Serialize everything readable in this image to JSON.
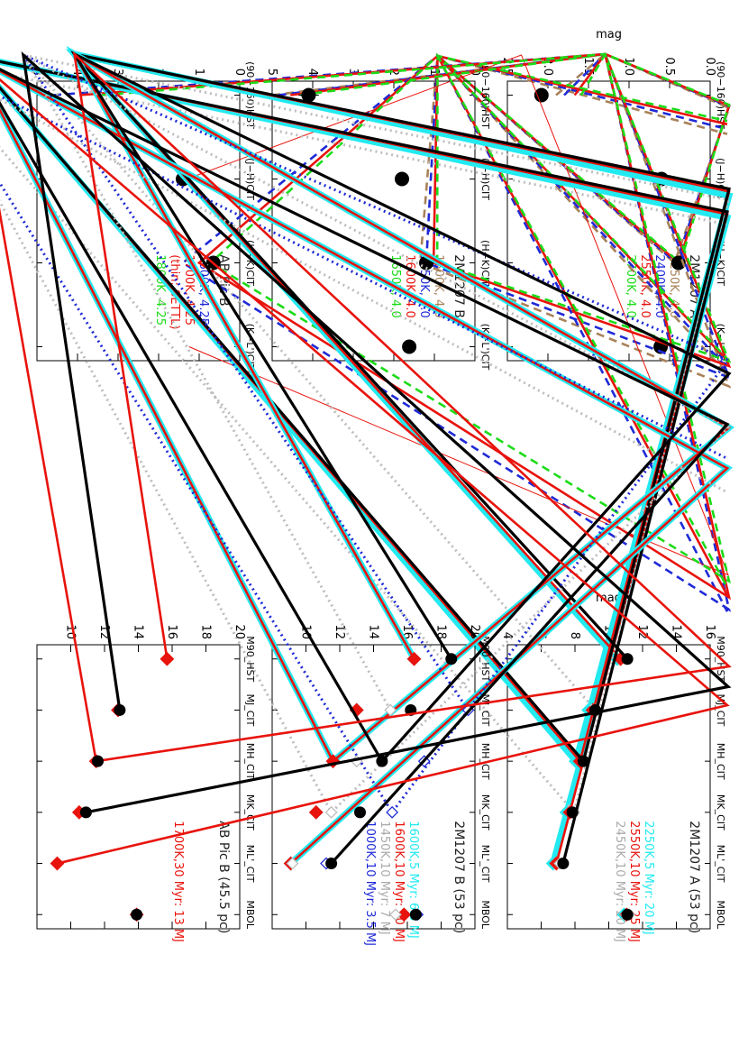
{
  "figure": {
    "orientation": "rotated-90-clockwise"
  },
  "chart_data": [
    {
      "id": "colors_A",
      "type": "line",
      "title": "2M1207 A",
      "ylabel": "mag",
      "ylim": [
        0,
        2.5
      ],
      "yticks": [
        0,
        0.5,
        1,
        1.5,
        2,
        2.5
      ],
      "ytick_labels": [
        "0.0",
        "0.5",
        "1.0",
        "1.5",
        "2.0",
        "2.5"
      ],
      "categories": [
        "(90−160)HST",
        "(J−H)CIT",
        "(H−K)CIT",
        "(K−L')CIT"
      ],
      "series": [
        {
          "name": "2250K, 4.0",
          "color": "#a8825a",
          "dash": "dashed",
          "values": [
            1.9,
            0.42,
            0.44,
            0.74
          ]
        },
        {
          "name": "2400K, 4.0",
          "color": "#1f2ad6",
          "dash": "dashed",
          "values": [
            1.8,
            0.4,
            0.42,
            0.68
          ]
        },
        {
          "name": "2550K, 4.0",
          "color": "#e8130c",
          "dash": "solid",
          "values": [
            1.67,
            0.39,
            0.39,
            0.62
          ]
        },
        {
          "name": "2700K, 4.0",
          "color": "#1bdc18",
          "dash": "dashed",
          "values": [
            1.59,
            0.38,
            0.37,
            0.58
          ]
        }
      ],
      "observed": {
        "values": [
          2.08,
          0.6,
          0.39,
          0.61
        ],
        "errors": [
          0.0,
          0.0,
          0.0,
          0.06
        ]
      }
    },
    {
      "id": "colors_B",
      "type": "line",
      "title": "2M1207 B",
      "ylim": [
        0,
        5
      ],
      "yticks": [
        0,
        1,
        2,
        3,
        4,
        5
      ],
      "ytick_labels": [
        "0",
        "1",
        "2",
        "3",
        "4",
        "5"
      ],
      "categories": [
        "(90−160)HST",
        "(J−H)CIT",
        "(H−K)CIT",
        "(K−L')CIT"
      ],
      "series": [
        {
          "name": "1500K, 4.0",
          "color": "#a8825a",
          "dash": "dashed",
          "values": [
            5.0,
            1.9,
            1.35,
            1.6
          ]
        },
        {
          "name": "1550K, 4.0",
          "color": "#1f2ad6",
          "dash": "dashed",
          "values": [
            4.85,
            1.68,
            1.2,
            1.45
          ]
        },
        {
          "name": "1600K, 4.0",
          "color": "#e8130c",
          "dash": "solid",
          "values": [
            4.55,
            1.4,
            1.02,
            1.26
          ]
        },
        {
          "name": "1650K, 4.0",
          "color": "#1bdc18",
          "dash": "dashed",
          "values": [
            4.3,
            1.28,
            0.93,
            1.22
          ]
        }
      ],
      "observed": {
        "values": [
          4.1,
          1.8,
          1.2,
          1.62
        ],
        "errors": [
          0.25,
          0.1,
          0.1,
          0.12
        ]
      }
    },
    {
      "id": "colors_ABPic",
      "type": "line",
      "title": "AB Pic B",
      "ylim": [
        0,
        5
      ],
      "yticks": [
        0,
        1,
        2,
        3,
        4,
        5
      ],
      "ytick_labels": [
        "0",
        "1",
        "2",
        "3",
        "4",
        "5"
      ],
      "categories": [
        "(90−160)HST",
        "(J−H)CIT",
        "(H−K)CIT",
        "(K−L')CIT"
      ],
      "series": [
        {
          "name": "1600K, 4.25",
          "color": "#1f2ad6",
          "dash": "dashed",
          "values": [
            4.6,
            1.6,
            1.4,
            1.65
          ]
        },
        {
          "name": "1700K, 4.25",
          "color": "#e8130c",
          "dash": "solid",
          "values": [
            3.95,
            1.3,
            1.0,
            1.25
          ]
        },
        {
          "name": "(thin: SETTL)",
          "color": "#e8130c",
          "dash": "thin",
          "values": [
            null,
            1.3,
            0.75,
            1.25
          ]
        },
        {
          "name": "1800K, 4.25",
          "color": "#1bdc18",
          "dash": "dashed",
          "values": [
            3.4,
            0.9,
            0.72,
            1.05
          ]
        }
      ],
      "observed": {
        "values": [
          null,
          1.4,
          0.65,
          null
        ],
        "errors": [
          null,
          0.08,
          0.08,
          null
        ]
      }
    },
    {
      "id": "mags_A",
      "type": "line",
      "title": "2M1207 A (53 pc)",
      "ylabel": "mag",
      "ylim": [
        16,
        4
      ],
      "yticks": [
        4,
        6,
        8,
        10,
        12,
        14,
        16
      ],
      "ytick_labels": [
        "4",
        "6",
        "8",
        "10",
        "12",
        "14",
        "16"
      ],
      "categories": [
        "M90_HST",
        "MJ_CIT",
        "MH_CIT",
        "MK_CIT",
        "ML'_CIT",
        "MBOL"
      ],
      "series": [
        {
          "name": "2250K,5 Myr: 20 MJ",
          "color": "#22eaf0",
          "style": "thick",
          "marker": "diamond",
          "values": [
            10.5,
            8.8,
            8.05,
            7.5,
            6.7,
            10.9
          ],
          "connect_to": 5
        },
        {
          "name": "2550K,10 Myr: 25 MJ",
          "color": "#e8130c",
          "style": "solid",
          "marker": "diamond",
          "values": [
            10.7,
            9.05,
            8.3,
            7.7,
            6.9,
            11.05
          ],
          "connect_to": 5
        },
        {
          "name": "2450K,10 Myr: 20 MJ",
          "color": "#bdbdbd",
          "style": "dotted",
          "marker": "open-diamond",
          "values": [
            null,
            9.2,
            8.55,
            7.95,
            7.1,
            11.2
          ],
          "connect_to": 5
        }
      ],
      "observed": {
        "values": [
          11.1,
          9.2,
          8.5,
          7.85,
          7.3,
          11.1
        ]
      }
    },
    {
      "id": "mags_B",
      "type": "line",
      "title": "2M1207 B (53 pc)",
      "ylim": [
        20,
        8
      ],
      "yticks": [
        10,
        12,
        14,
        16,
        18,
        20
      ],
      "ytick_labels": [
        "10",
        "12",
        "14",
        "16",
        "18",
        "20"
      ],
      "categories": [
        "M90_HST",
        "MJ_CIT",
        "MH_CIT",
        "MK_CIT",
        "ML'_CIT",
        "MBOL"
      ],
      "series": [
        {
          "name": "1600K,5 Myr: 6.5 MJ",
          "color": "#22eaf0",
          "style": "thick",
          "marker": "diamond",
          "values": [
            16.4,
            13.0,
            11.6,
            10.6,
            9.1,
            15.8
          ],
          "connect_to": 5
        },
        {
          "name": "1600K,10 Myr: 10 MJ",
          "color": "#e8130c",
          "style": "solid",
          "marker": "diamond",
          "values": [
            16.4,
            13.0,
            11.6,
            10.6,
            9.1,
            15.8
          ],
          "connect_to": 5
        },
        {
          "name": "1450K,10 Myr: 7 MJ",
          "color": "#bdbdbd",
          "style": "dotted",
          "marker": "open-diamond",
          "values": [
            null,
            15.0,
            13.0,
            11.5,
            9.2,
            15.3
          ],
          "connect_to": 5
        },
        {
          "name": "1000K,10 Myr: 3.5 MJ",
          "color": "#1f2ad6",
          "style": "dotted",
          "marker": "open-diamond",
          "values": [
            null,
            19.6,
            17.0,
            15.1,
            11.2,
            16.6
          ],
          "connect_to": 5
        }
      ],
      "observed": {
        "values": [
          18.6,
          16.2,
          14.5,
          13.2,
          11.5,
          16.5
        ]
      }
    },
    {
      "id": "mags_ABPic",
      "type": "line",
      "title": "AB Pic B (45.5 pc)",
      "ylim": [
        20,
        8
      ],
      "yticks": [
        10,
        12,
        14,
        16,
        18,
        20
      ],
      "ytick_labels": [
        "10",
        "12",
        "14",
        "16",
        "18",
        "20"
      ],
      "categories": [
        "M90_HST",
        "MJ_CIT",
        "MH_CIT",
        "MK_CIT",
        "ML'_CIT",
        "MBOL"
      ],
      "series": [
        {
          "name": "1700K,30 Myr: 13 MJ",
          "color": "#e8130c",
          "style": "solid",
          "marker": "diamond",
          "values": [
            15.7,
            12.8,
            11.5,
            10.5,
            9.2,
            13.9
          ],
          "connect_to": 5
        }
      ],
      "observed": {
        "values": [
          null,
          12.9,
          11.6,
          10.9,
          null,
          13.9
        ]
      }
    }
  ]
}
